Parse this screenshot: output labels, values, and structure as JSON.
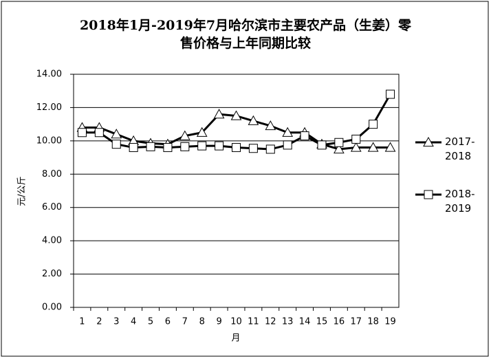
{
  "chart_data": {
    "type": "line",
    "title": [
      "2018年1月-2019年7月哈尔滨市主要农产品（生姜）零",
      "售价格与上年同期比较"
    ],
    "x_label": "月",
    "y_label": "元/公斤",
    "categories": [
      "1",
      "2",
      "3",
      "4",
      "5",
      "6",
      "7",
      "8",
      "9",
      "10",
      "11",
      "12",
      "13",
      "14",
      "15",
      "16",
      "17",
      "18",
      "19"
    ],
    "ylim": [
      0,
      14
    ],
    "yticks": [
      {
        "value": 0,
        "label": "0.00"
      },
      {
        "value": 2,
        "label": "2.00"
      },
      {
        "value": 4,
        "label": "4.00"
      },
      {
        "value": 6,
        "label": "6.00"
      },
      {
        "value": 8,
        "label": "8.00"
      },
      {
        "value": 10,
        "label": "10.00"
      },
      {
        "value": 12,
        "label": "12.00"
      },
      {
        "value": 14,
        "label": "14.00"
      }
    ],
    "grid": true,
    "legend": "right",
    "series": [
      {
        "name": "2017-2018",
        "color": "#000000",
        "marker": "triangle",
        "values": [
          10.8,
          10.8,
          10.4,
          10.0,
          9.85,
          9.8,
          10.3,
          10.5,
          11.6,
          11.5,
          11.2,
          10.9,
          10.5,
          10.5,
          9.8,
          9.5,
          9.6,
          9.6,
          9.6
        ]
      },
      {
        "name": "2018-2019",
        "color": "#000000",
        "marker": "square",
        "values": [
          10.5,
          10.5,
          9.8,
          9.6,
          9.65,
          9.6,
          9.65,
          9.7,
          9.7,
          9.6,
          9.55,
          9.5,
          9.75,
          10.3,
          9.75,
          9.9,
          10.1,
          11.0,
          12.8
        ]
      }
    ]
  }
}
